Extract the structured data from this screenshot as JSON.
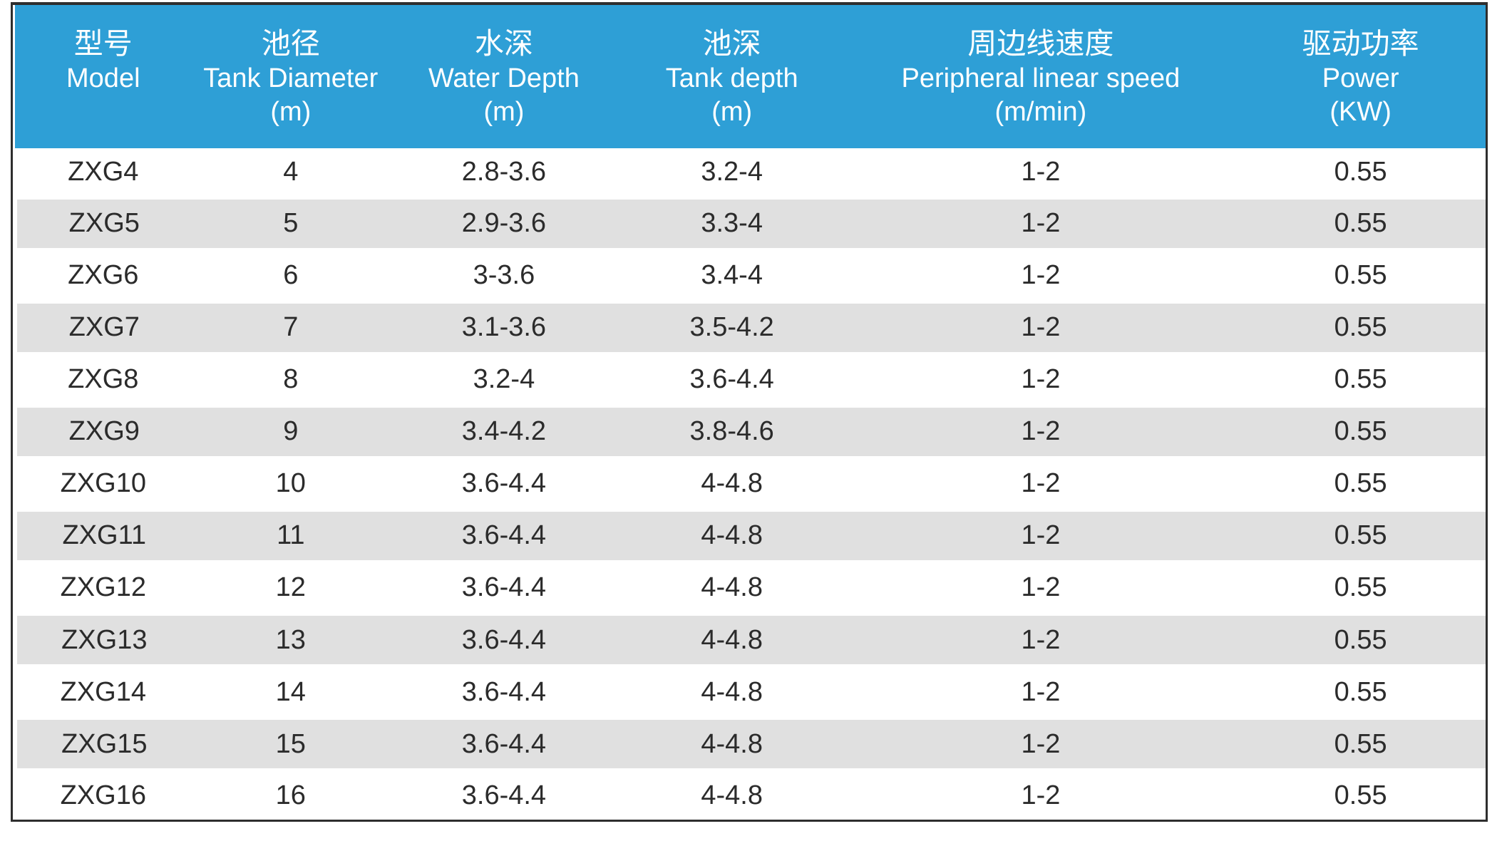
{
  "colors": {
    "page_bg": "#FFFFFF",
    "border": "#2E2E2E",
    "header_bg": "#2E9FD6",
    "header_text": "#FFFFFF",
    "row_bg": "#FFFFFF",
    "row_alt_bg": "#E0E0E0",
    "body_text": "#2B2B2B"
  },
  "table": {
    "columns": [
      {
        "zh": "型号",
        "en": "Model",
        "unit": ""
      },
      {
        "zh": "池径",
        "en": "Tank Diameter",
        "unit": "(m)"
      },
      {
        "zh": "水深",
        "en": "Water Depth",
        "unit": "(m)"
      },
      {
        "zh": "池深",
        "en": "Tank depth",
        "unit": "(m)"
      },
      {
        "zh": "周边线速度",
        "en": "Peripheral linear speed",
        "unit": "(m/min)"
      },
      {
        "zh": "驱动功率",
        "en": "Power",
        "unit": "(KW)"
      }
    ],
    "rows": [
      [
        "ZXG4",
        "4",
        "2.8-3.6",
        "3.2-4",
        "1-2",
        "0.55"
      ],
      [
        "ZXG5",
        "5",
        "2.9-3.6",
        "3.3-4",
        "1-2",
        "0.55"
      ],
      [
        "ZXG6",
        "6",
        "3-3.6",
        "3.4-4",
        "1-2",
        "0.55"
      ],
      [
        "ZXG7",
        "7",
        "3.1-3.6",
        "3.5-4.2",
        "1-2",
        "0.55"
      ],
      [
        "ZXG8",
        "8",
        "3.2-4",
        "3.6-4.4",
        "1-2",
        "0.55"
      ],
      [
        "ZXG9",
        "9",
        "3.4-4.2",
        "3.8-4.6",
        "1-2",
        "0.55"
      ],
      [
        "ZXG10",
        "10",
        "3.6-4.4",
        "4-4.8",
        "1-2",
        "0.55"
      ],
      [
        "ZXG11",
        "11",
        "3.6-4.4",
        "4-4.8",
        "1-2",
        "0.55"
      ],
      [
        "ZXG12",
        "12",
        "3.6-4.4",
        "4-4.8",
        "1-2",
        "0.55"
      ],
      [
        "ZXG13",
        "13",
        "3.6-4.4",
        "4-4.8",
        "1-2",
        "0.55"
      ],
      [
        "ZXG14",
        "14",
        "3.6-4.4",
        "4-4.8",
        "1-2",
        "0.55"
      ],
      [
        "ZXG15",
        "15",
        "3.6-4.4",
        "4-4.8",
        "1-2",
        "0.55"
      ],
      [
        "ZXG16",
        "16",
        "3.6-4.4",
        "4-4.8",
        "1-2",
        "0.55"
      ]
    ]
  }
}
